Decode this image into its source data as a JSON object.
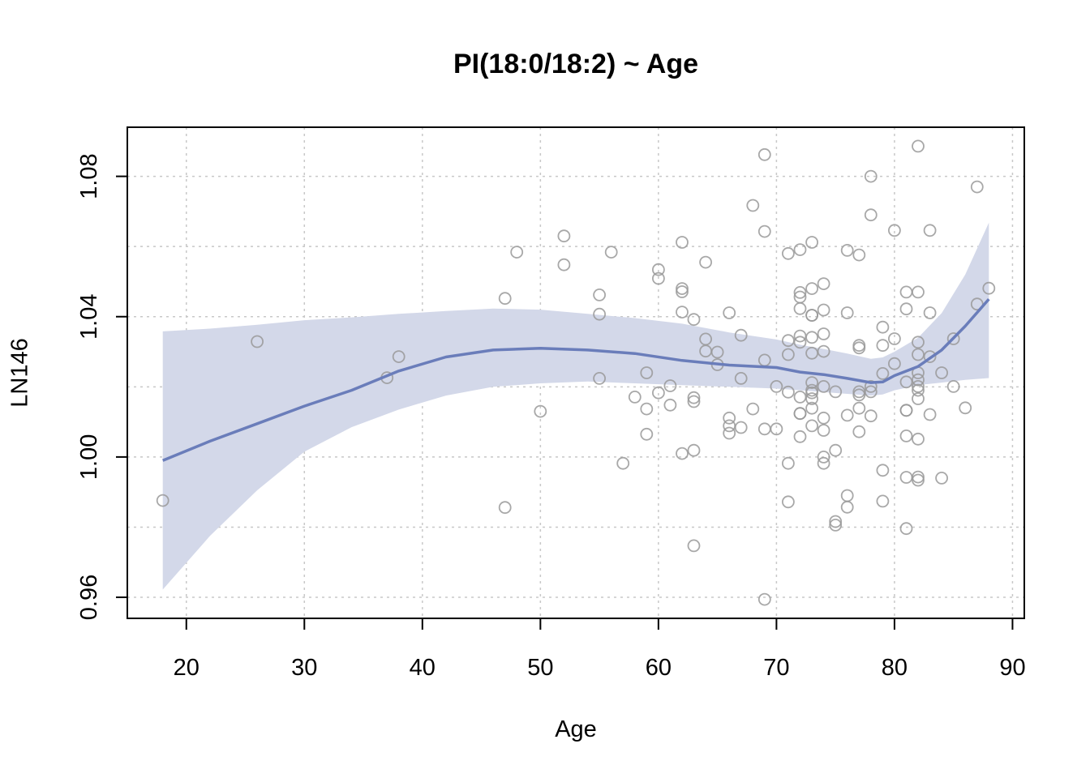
{
  "chart_data": {
    "type": "scatter",
    "title": "PI(18:0/18:2) ~ Age",
    "xlabel": "Age",
    "ylabel": "LN146",
    "xlim": [
      15,
      91
    ],
    "ylim": [
      0.954,
      1.094
    ],
    "x_ticks": [
      20,
      30,
      40,
      50,
      60,
      70,
      80,
      90
    ],
    "y_ticks": [
      0.96,
      1.0,
      1.04,
      1.08
    ],
    "y_tick_labels": [
      "0.96",
      "1.00",
      "1.04",
      "1.08"
    ],
    "grid": true,
    "colors": {
      "points": "#999999",
      "fit_line": "#6A7DBA",
      "band": "#D3D8E9"
    },
    "points": [
      [
        18,
        0.9876
      ],
      [
        26,
        1.0329
      ],
      [
        37,
        1.0226
      ],
      [
        38,
        1.0286
      ],
      [
        47,
        1.0452
      ],
      [
        47,
        0.9856
      ],
      [
        48,
        1.0584
      ],
      [
        50,
        1.013
      ],
      [
        52,
        1.063
      ],
      [
        52,
        1.0548
      ],
      [
        55,
        1.0462
      ],
      [
        55,
        1.0407
      ],
      [
        55,
        1.0224
      ],
      [
        56,
        1.0584
      ],
      [
        57,
        0.9982
      ],
      [
        58,
        1.0171
      ],
      [
        59,
        1.024
      ],
      [
        59,
        1.0137
      ],
      [
        59,
        1.0065
      ],
      [
        60,
        1.0534
      ],
      [
        60,
        1.0509
      ],
      [
        60,
        1.0183
      ],
      [
        61,
        1.0203
      ],
      [
        61,
        1.0148
      ],
      [
        62,
        1.0612
      ],
      [
        62,
        1.048
      ],
      [
        62,
        1.0471
      ],
      [
        62,
        1.0413
      ],
      [
        62,
        1.001
      ],
      [
        63,
        1.0392
      ],
      [
        63,
        1.0169
      ],
      [
        63,
        1.0158
      ],
      [
        63,
        1.0019
      ],
      [
        63,
        0.9747
      ],
      [
        64,
        1.0555
      ],
      [
        64,
        1.0336
      ],
      [
        64,
        1.0302
      ],
      [
        65,
        1.0299
      ],
      [
        65,
        1.0263
      ],
      [
        66,
        1.0411
      ],
      [
        66,
        1.0111
      ],
      [
        66,
        1.0089
      ],
      [
        66,
        1.0068
      ],
      [
        67,
        1.0347
      ],
      [
        67,
        1.0224
      ],
      [
        67,
        1.0084
      ],
      [
        68,
        1.0717
      ],
      [
        68,
        1.0137
      ],
      [
        69,
        1.0862
      ],
      [
        69,
        1.0643
      ],
      [
        69,
        1.0276
      ],
      [
        69,
        1.008
      ],
      [
        69,
        0.9594
      ],
      [
        70,
        1.0201
      ],
      [
        70,
        1.008
      ],
      [
        71,
        1.058
      ],
      [
        71,
        1.0332
      ],
      [
        71,
        1.0292
      ],
      [
        71,
        1.0185
      ],
      [
        71,
        0.9982
      ],
      [
        71,
        0.9872
      ],
      [
        72,
        1.0591
      ],
      [
        72,
        1.0469
      ],
      [
        72,
        1.0456
      ],
      [
        72,
        1.0423
      ],
      [
        72,
        1.0345
      ],
      [
        72,
        1.0327
      ],
      [
        72,
        1.0171
      ],
      [
        72,
        1.0124
      ],
      [
        72,
        1.0124
      ],
      [
        72,
        1.0058
      ],
      [
        73,
        1.0612
      ],
      [
        73,
        1.048
      ],
      [
        73,
        1.0404
      ],
      [
        73,
        1.0404
      ],
      [
        73,
        1.0341
      ],
      [
        73,
        1.0296
      ],
      [
        73,
        1.0212
      ],
      [
        73,
        1.019
      ],
      [
        73,
        1.0183
      ],
      [
        73,
        1.0166
      ],
      [
        73,
        1.0139
      ],
      [
        73,
        1.0089
      ],
      [
        74,
        1.0494
      ],
      [
        74,
        1.0419
      ],
      [
        74,
        1.0351
      ],
      [
        74,
        1.0301
      ],
      [
        74,
        1.0201
      ],
      [
        74,
        1.0111
      ],
      [
        74,
        1.0076
      ],
      [
        74,
        1.0
      ],
      [
        74,
        0.9982
      ],
      [
        75,
        1.0186
      ],
      [
        75,
        1.0019
      ],
      [
        75,
        0.9816
      ],
      [
        75,
        0.9806
      ],
      [
        76,
        1.0589
      ],
      [
        76,
        1.0411
      ],
      [
        76,
        1.0119
      ],
      [
        76,
        0.989
      ],
      [
        76,
        0.9857
      ],
      [
        77,
        1.0576
      ],
      [
        77,
        1.0318
      ],
      [
        77,
        1.0311
      ],
      [
        77,
        1.0186
      ],
      [
        77,
        1.0177
      ],
      [
        77,
        1.0139
      ],
      [
        77,
        1.0072
      ],
      [
        78,
        1.08
      ],
      [
        78,
        1.069
      ],
      [
        78,
        1.0201
      ],
      [
        78,
        1.0186
      ],
      [
        78,
        1.0117
      ],
      [
        79,
        1.037
      ],
      [
        79,
        1.0318
      ],
      [
        79,
        1.0238
      ],
      [
        79,
        0.9962
      ],
      [
        79,
        0.9874
      ],
      [
        80,
        1.0646
      ],
      [
        80,
        1.0337
      ],
      [
        80,
        1.0266
      ],
      [
        81,
        1.047
      ],
      [
        81,
        1.0422
      ],
      [
        81,
        1.0214
      ],
      [
        81,
        1.0133
      ],
      [
        81,
        1.0133
      ],
      [
        81,
        1.006
      ],
      [
        81,
        0.9942
      ],
      [
        81,
        0.9796
      ],
      [
        82,
        1.0886
      ],
      [
        82,
        1.047
      ],
      [
        82,
        1.0327
      ],
      [
        82,
        1.0292
      ],
      [
        82,
        1.024
      ],
      [
        82,
        1.022
      ],
      [
        82,
        1.0201
      ],
      [
        82,
        1.019
      ],
      [
        82,
        1.0166
      ],
      [
        82,
        1.0051
      ],
      [
        82,
        0.9943
      ],
      [
        82,
        0.9934
      ],
      [
        83,
        1.0646
      ],
      [
        83,
        1.0411
      ],
      [
        83,
        1.0286
      ],
      [
        83,
        1.0121
      ],
      [
        84,
        1.024
      ],
      [
        84,
        0.994
      ],
      [
        85,
        1.0337
      ],
      [
        85,
        1.0201
      ],
      [
        86,
        1.014
      ],
      [
        87,
        1.077
      ],
      [
        87,
        1.0436
      ],
      [
        88,
        1.0481
      ]
    ],
    "fit": {
      "x": [
        18,
        22,
        26,
        30,
        34,
        38,
        42,
        46,
        50,
        54,
        58,
        62,
        66,
        70,
        72,
        74,
        76,
        78,
        79,
        80,
        82,
        84,
        86,
        88
      ],
      "y": [
        0.999,
        1.0045,
        1.0095,
        1.0145,
        1.019,
        1.0245,
        1.0285,
        1.0305,
        1.031,
        1.0305,
        1.0295,
        1.0275,
        1.0262,
        1.0255,
        1.0242,
        1.0235,
        1.0224,
        1.0212,
        1.0214,
        1.0232,
        1.0258,
        1.0305,
        1.0373,
        1.045
      ],
      "lower": [
        0.9622,
        0.9775,
        0.9905,
        1.0015,
        1.0085,
        1.0135,
        1.0175,
        1.02,
        1.021,
        1.0215,
        1.021,
        1.0205,
        1.02,
        1.0195,
        1.019,
        1.0185,
        1.018,
        1.0175,
        1.0178,
        1.019,
        1.0205,
        1.0212,
        1.022,
        1.0225
      ],
      "upper": [
        1.0358,
        1.0366,
        1.0377,
        1.039,
        1.0398,
        1.0408,
        1.0416,
        1.0423,
        1.042,
        1.0408,
        1.0396,
        1.038,
        1.0355,
        1.0335,
        1.032,
        1.0308,
        1.0295,
        1.028,
        1.0284,
        1.03,
        1.034,
        1.041,
        1.052,
        1.0668
      ]
    }
  }
}
